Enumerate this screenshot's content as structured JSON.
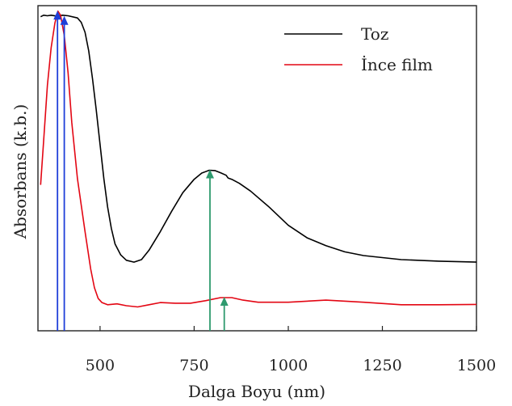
{
  "chart_data": {
    "type": "line",
    "xlabel": "Dalga Boyu (nm)",
    "ylabel": "Absorbans (k.b.)",
    "xlim": [
      335,
      1500
    ],
    "ylim": [
      0,
      1
    ],
    "x_ticks": [
      500,
      750,
      1000,
      1250,
      1500
    ],
    "x_tick_labels": [
      "500",
      "750",
      "1000",
      "1250",
      "1500"
    ],
    "legend_position": "top-right",
    "grid": false,
    "series": [
      {
        "name": "Toz",
        "color": "#000000",
        "points": [
          [
            342,
            0.98
          ],
          [
            350,
            0.985
          ],
          [
            360,
            0.983
          ],
          [
            370,
            0.985
          ],
          [
            385,
            0.982
          ],
          [
            400,
            0.985
          ],
          [
            415,
            0.983
          ],
          [
            440,
            0.976
          ],
          [
            450,
            0.962
          ],
          [
            460,
            0.93
          ],
          [
            470,
            0.87
          ],
          [
            480,
            0.78
          ],
          [
            490,
            0.68
          ],
          [
            500,
            0.57
          ],
          [
            510,
            0.46
          ],
          [
            520,
            0.37
          ],
          [
            530,
            0.3
          ],
          [
            540,
            0.25
          ],
          [
            555,
            0.215
          ],
          [
            570,
            0.198
          ],
          [
            590,
            0.192
          ],
          [
            610,
            0.2
          ],
          [
            630,
            0.23
          ],
          [
            660,
            0.29
          ],
          [
            690,
            0.355
          ],
          [
            720,
            0.415
          ],
          [
            750,
            0.458
          ],
          [
            770,
            0.478
          ],
          [
            790,
            0.487
          ],
          [
            805,
            0.486
          ],
          [
            820,
            0.479
          ],
          [
            835,
            0.471
          ],
          [
            840,
            0.462
          ],
          [
            850,
            0.458
          ],
          [
            870,
            0.445
          ],
          [
            900,
            0.42
          ],
          [
            950,
            0.368
          ],
          [
            1000,
            0.31
          ],
          [
            1050,
            0.27
          ],
          [
            1100,
            0.245
          ],
          [
            1150,
            0.225
          ],
          [
            1200,
            0.213
          ],
          [
            1300,
            0.2
          ],
          [
            1400,
            0.195
          ],
          [
            1500,
            0.192
          ]
        ]
      },
      {
        "name": "İnce film",
        "color": "#e30613",
        "points": [
          [
            342,
            0.44
          ],
          [
            350,
            0.58
          ],
          [
            360,
            0.76
          ],
          [
            370,
            0.88
          ],
          [
            380,
            0.96
          ],
          [
            388,
            0.998
          ],
          [
            395,
            0.985
          ],
          [
            405,
            0.92
          ],
          [
            415,
            0.8
          ],
          [
            425,
            0.64
          ],
          [
            440,
            0.46
          ],
          [
            460,
            0.29
          ],
          [
            475,
            0.17
          ],
          [
            485,
            0.11
          ],
          [
            495,
            0.075
          ],
          [
            505,
            0.062
          ],
          [
            520,
            0.055
          ],
          [
            545,
            0.058
          ],
          [
            570,
            0.052
          ],
          [
            600,
            0.048
          ],
          [
            630,
            0.055
          ],
          [
            660,
            0.062
          ],
          [
            700,
            0.06
          ],
          [
            740,
            0.06
          ],
          [
            780,
            0.068
          ],
          [
            820,
            0.078
          ],
          [
            850,
            0.078
          ],
          [
            880,
            0.07
          ],
          [
            920,
            0.063
          ],
          [
            1000,
            0.063
          ],
          [
            1100,
            0.07
          ],
          [
            1200,
            0.063
          ],
          [
            1300,
            0.055
          ],
          [
            1400,
            0.055
          ],
          [
            1500,
            0.056
          ]
        ]
      }
    ],
    "arrows": [
      {
        "x": 387,
        "y_tip": 0.997,
        "color": "#1f3fd9"
      },
      {
        "x": 405,
        "y_tip": 0.98,
        "color": "#1f3fd9"
      },
      {
        "x": 792,
        "y_tip": 0.487,
        "color": "#2e9a6e"
      },
      {
        "x": 830,
        "y_tip": 0.078,
        "color": "#2e9a6e"
      }
    ]
  }
}
